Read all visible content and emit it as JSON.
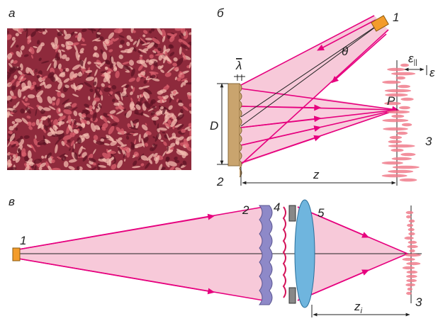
{
  "panel_a": {
    "label": "а"
  },
  "panel_b": {
    "label": "б",
    "source": "1",
    "diffuser": "2",
    "plane": "3",
    "angle": "θ",
    "wavelength": "λ",
    "aperture": "D",
    "point": "P",
    "distance": "z",
    "speckle_long": "ε",
    "speckle_long_sub": "||",
    "speckle_short": "ε"
  },
  "panel_c": {
    "label": "в",
    "source": "1",
    "diffuser": "2",
    "plane": "3",
    "element4": "4",
    "lens": "5",
    "distance": "z",
    "distance_sub": "i"
  }
}
